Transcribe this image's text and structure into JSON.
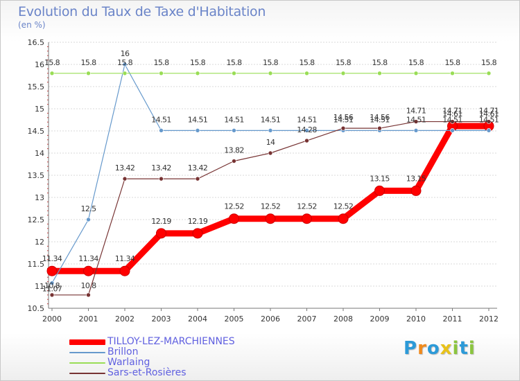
{
  "header": {
    "title": "Evolution du Taux de Taxe d'Habitation",
    "subtitle": "(en %)"
  },
  "colors": {
    "axis": "#777777",
    "grid": "#d8d8d8",
    "label": "#333333"
  },
  "chart_data": {
    "type": "line",
    "title": "Evolution du Taux de Taxe d'Habitation",
    "ylabel": "(en %)",
    "xlabel": "",
    "x": [
      "2000",
      "2001",
      "2002",
      "2003",
      "2004",
      "2005",
      "2006",
      "2007",
      "2008",
      "2009",
      "2010",
      "2011",
      "2012"
    ],
    "ylim": [
      10.5,
      16.5
    ],
    "yticks": [
      "10.5",
      "11",
      "11.5",
      "12",
      "12.5",
      "13",
      "13.5",
      "14",
      "14.5",
      "15",
      "15.5",
      "16",
      "16.5"
    ],
    "grid": "horizontal",
    "legend_position": "bottom-left",
    "series": [
      {
        "name": "TILLOY-LEZ-MARCHIENNES",
        "color": "#ff0000",
        "values": [
          11.34,
          11.34,
          11.34,
          12.19,
          12.19,
          12.52,
          12.52,
          12.52,
          12.52,
          13.15,
          13.15,
          14.61,
          14.61
        ],
        "labels": [
          "11.34",
          "11.34",
          "11.34",
          "12.19",
          "12.19",
          "12.52",
          "12.52",
          "12.52",
          "12.52",
          "13.15",
          "13.15",
          "14.61",
          "14.61"
        ]
      },
      {
        "name": "Brillon",
        "color": "#6699cc",
        "values": [
          11.07,
          12.5,
          16,
          14.51,
          14.51,
          14.51,
          14.51,
          14.51,
          14.51,
          14.51,
          14.51,
          14.51,
          14.51
        ],
        "labels": [
          "11.07",
          "12.5",
          "16",
          "14.51",
          "14.51",
          "14.51",
          "14.51",
          "14.51",
          "14.51",
          "14.51",
          "14.51",
          "14.51",
          "14.51"
        ]
      },
      {
        "name": "Warlaing",
        "color": "#99dd55",
        "values": [
          15.8,
          15.8,
          15.8,
          15.8,
          15.8,
          15.8,
          15.8,
          15.8,
          15.8,
          15.8,
          15.8,
          15.8,
          15.8
        ],
        "labels": [
          "15.8",
          "15.8",
          "15.8",
          "15.8",
          "15.8",
          "15.8",
          "15.8",
          "15.8",
          "15.8",
          "15.8",
          "15.8",
          "15.8",
          "15.8"
        ]
      },
      {
        "name": "Sars-et-Rosières",
        "color": "#773333",
        "values": [
          10.8,
          10.8,
          13.42,
          13.42,
          13.42,
          13.82,
          14,
          14.28,
          14.56,
          14.56,
          14.71,
          14.71,
          14.71
        ],
        "labels": [
          "10.8",
          "10.8",
          "13.42",
          "13.42",
          "13.42",
          "13.82",
          "14",
          "14.28",
          "14.56",
          "14.56",
          "14.71",
          "14.71",
          "14.71"
        ]
      }
    ]
  },
  "logo": {
    "letters": [
      "P",
      "r",
      "o",
      "x",
      "i",
      "t",
      "i"
    ],
    "colors": [
      "#2c9ad8",
      "#f08a1c",
      "#2c9ad8",
      "#e8c21a",
      "#8bc53f",
      "#2c9ad8",
      "#8bc53f"
    ]
  }
}
